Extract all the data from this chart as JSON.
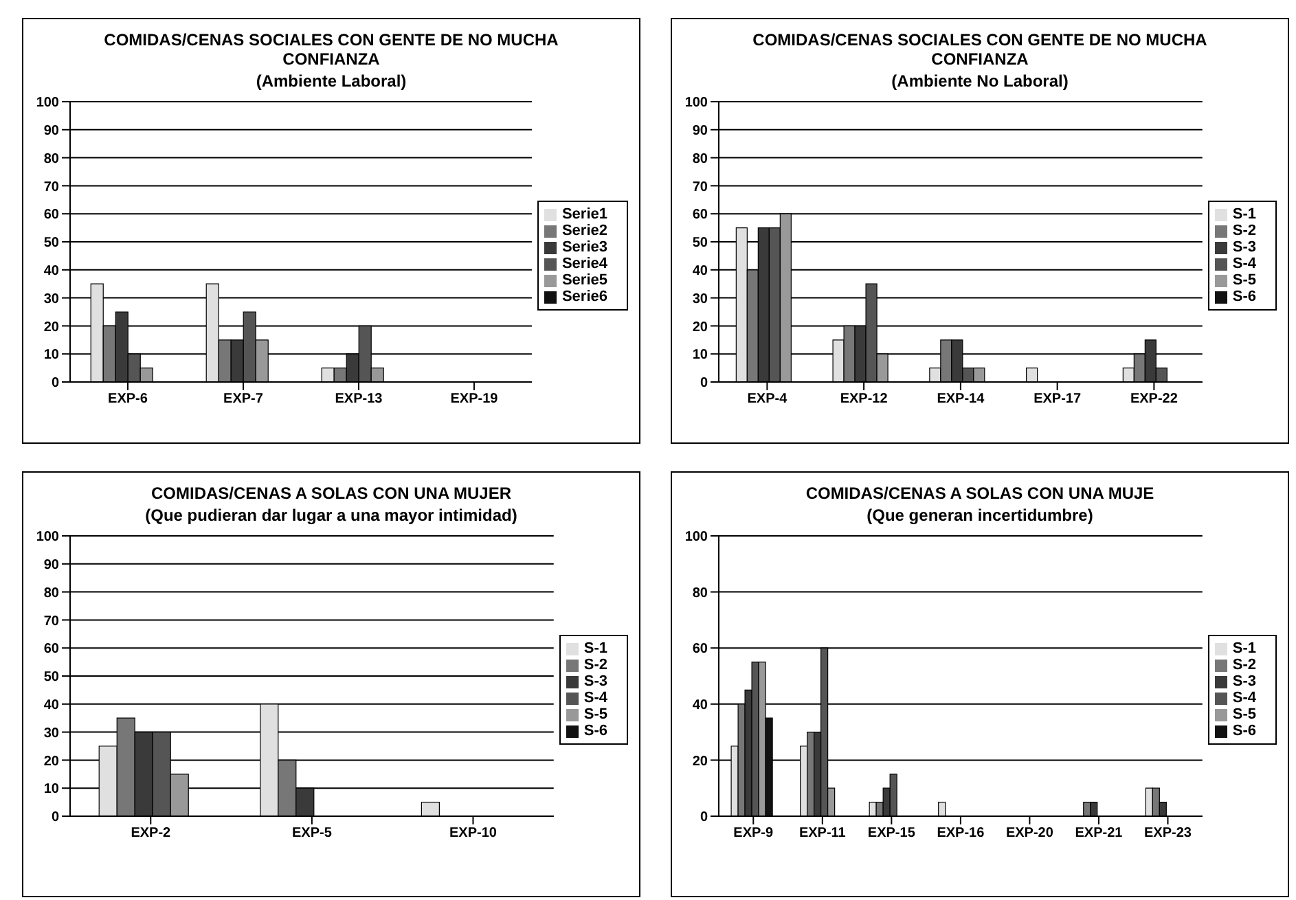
{
  "chart_data": [
    {
      "type": "bar",
      "title": "COMIDAS/CENAS SOCIALES CON GENTE DE NO MUCHA CONFIANZA",
      "subtitle": "(Ambiente Laboral)",
      "categories": [
        "EXP-6",
        "EXP-7",
        "EXP-13",
        "EXP-19"
      ],
      "series": [
        {
          "name": "Serie1",
          "color": "#e0e0e0",
          "values": [
            35,
            35,
            5,
            0
          ]
        },
        {
          "name": "Serie2",
          "color": "#777777",
          "values": [
            20,
            15,
            5,
            0
          ]
        },
        {
          "name": "Serie3",
          "color": "#3a3a3a",
          "values": [
            25,
            15,
            10,
            0
          ]
        },
        {
          "name": "Serie4",
          "color": "#555555",
          "values": [
            10,
            25,
            20,
            0
          ]
        },
        {
          "name": "Serie5",
          "color": "#999999",
          "values": [
            5,
            15,
            5,
            0
          ]
        },
        {
          "name": "Serie6",
          "color": "#111111",
          "values": [
            0,
            0,
            0,
            0
          ]
        }
      ],
      "ylim": [
        0,
        100
      ],
      "yticks": [
        0,
        10,
        20,
        30,
        40,
        50,
        60,
        70,
        80,
        90,
        100
      ],
      "grid": "y",
      "legend": "right"
    },
    {
      "type": "bar",
      "title": "COMIDAS/CENAS SOCIALES CON GENTE DE NO MUCHA CONFIANZA",
      "subtitle": "(Ambiente No Laboral)",
      "categories": [
        "EXP-4",
        "EXP-12",
        "EXP-14",
        "EXP-17",
        "EXP-22"
      ],
      "series": [
        {
          "name": "S-1",
          "color": "#e0e0e0",
          "values": [
            55,
            15,
            5,
            5,
            5
          ]
        },
        {
          "name": "S-2",
          "color": "#777777",
          "values": [
            40,
            20,
            15,
            0,
            10
          ]
        },
        {
          "name": "S-3",
          "color": "#3a3a3a",
          "values": [
            55,
            20,
            15,
            0,
            15
          ]
        },
        {
          "name": "S-4",
          "color": "#555555",
          "values": [
            55,
            35,
            5,
            0,
            5
          ]
        },
        {
          "name": "S-5",
          "color": "#999999",
          "values": [
            60,
            10,
            5,
            0,
            0
          ]
        },
        {
          "name": "S-6",
          "color": "#111111",
          "values": [
            0,
            0,
            0,
            0,
            0
          ]
        }
      ],
      "ylim": [
        0,
        100
      ],
      "yticks": [
        0,
        10,
        20,
        30,
        40,
        50,
        60,
        70,
        80,
        90,
        100
      ],
      "grid": "y",
      "legend": "right"
    },
    {
      "type": "bar",
      "title": "COMIDAS/CENAS A SOLAS CON UNA MUJER",
      "subtitle": "(Que  pudieran dar lugar a una mayor intimidad)",
      "categories": [
        "EXP-2",
        "EXP-5",
        "EXP-10"
      ],
      "series": [
        {
          "name": "S-1",
          "color": "#e0e0e0",
          "values": [
            25,
            40,
            5
          ]
        },
        {
          "name": "S-2",
          "color": "#777777",
          "values": [
            35,
            20,
            0
          ]
        },
        {
          "name": "S-3",
          "color": "#3a3a3a",
          "values": [
            30,
            10,
            0
          ]
        },
        {
          "name": "S-4",
          "color": "#555555",
          "values": [
            30,
            0,
            0
          ]
        },
        {
          "name": "S-5",
          "color": "#999999",
          "values": [
            15,
            0,
            0
          ]
        },
        {
          "name": "S-6",
          "color": "#111111",
          "values": [
            0,
            0,
            0
          ]
        }
      ],
      "ylim": [
        0,
        100
      ],
      "yticks": [
        0,
        10,
        20,
        30,
        40,
        50,
        60,
        70,
        80,
        90,
        100
      ],
      "grid": "y",
      "legend": "right"
    },
    {
      "type": "bar",
      "title": "COMIDAS/CENAS A SOLAS CON UNA MUJE",
      "subtitle": "(Que generan incertidumbre)",
      "categories": [
        "EXP-9",
        "EXP-11",
        "EXP-15",
        "EXP-16",
        "EXP-20",
        "EXP-21",
        "EXP-23"
      ],
      "series": [
        {
          "name": "S-1",
          "color": "#e0e0e0",
          "values": [
            25,
            25,
            5,
            5,
            0,
            0,
            10
          ]
        },
        {
          "name": "S-2",
          "color": "#777777",
          "values": [
            40,
            30,
            5,
            0,
            0,
            5,
            10
          ]
        },
        {
          "name": "S-3",
          "color": "#3a3a3a",
          "values": [
            45,
            30,
            10,
            0,
            0,
            5,
            5
          ]
        },
        {
          "name": "S-4",
          "color": "#555555",
          "values": [
            55,
            60,
            15,
            0,
            0,
            0,
            0
          ]
        },
        {
          "name": "S-5",
          "color": "#999999",
          "values": [
            55,
            10,
            0,
            0,
            0,
            0,
            0
          ]
        },
        {
          "name": "S-6",
          "color": "#111111",
          "values": [
            35,
            0,
            0,
            0,
            0,
            0,
            0
          ]
        }
      ],
      "ylim": [
        0,
        100
      ],
      "yticks": [
        0,
        20,
        40,
        60,
        80,
        100
      ],
      "grid": "y",
      "legend": "right"
    }
  ]
}
